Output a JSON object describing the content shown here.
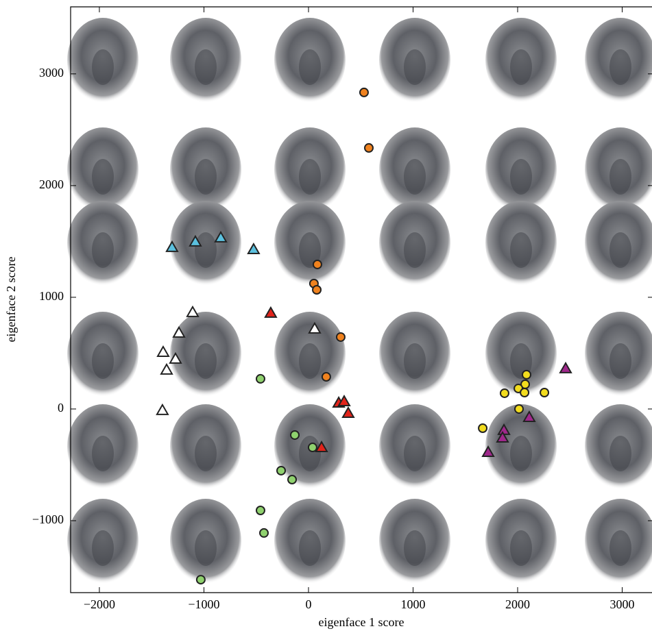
{
  "chart_data": {
    "type": "scatter",
    "x_label": "eigenface 1 score",
    "y_label": "eigenface 2 score",
    "xlim": [
      -2275,
      3285
    ],
    "ylim": [
      -1644,
      3600
    ],
    "xticks": [
      {
        "value": -2000,
        "label": "−2000"
      },
      {
        "value": -1000,
        "label": "−1000"
      },
      0,
      1000,
      2000,
      3000
    ],
    "yticks": [
      {
        "value": -1000,
        "label": "−1000"
      },
      0,
      1000,
      2000,
      3000
    ],
    "series": [
      {
        "marker": "circle",
        "color": "#f0821e",
        "x": [
          531,
          577,
          85,
          52,
          79,
          308,
          170
        ],
        "values": [
          2834,
          2337,
          1294,
          1123,
          1067,
          644,
          288
        ]
      },
      {
        "marker": "triangle",
        "color": "#5bc0de",
        "x": [
          -1305,
          -1082,
          -839,
          -525
        ],
        "values": [
          1448,
          1497,
          1534,
          1429
        ]
      },
      {
        "marker": "triangle",
        "color": "#ffffff",
        "x": [
          -1108,
          -1239,
          -1390,
          -1272,
          -1357,
          -1397,
          59
        ],
        "values": [
          865,
          681,
          509,
          448,
          350,
          -12,
          718
        ]
      },
      {
        "marker": "triangle",
        "color": "#e2231a",
        "x": [
          -361,
          289,
          341,
          380,
          125
        ],
        "values": [
          859,
          55,
          67,
          -37,
          -344
        ]
      },
      {
        "marker": "triangle",
        "color": "#a0288c",
        "x": [
          2459,
          2111,
          1869,
          1856,
          1718
        ],
        "values": [
          362,
          -74,
          -190,
          -258,
          -387
        ]
      },
      {
        "marker": "circle",
        "color": "#f2dc1e",
        "x": [
          2085,
          2072,
          2007,
          2066,
          1875,
          2256,
          2013,
          1666
        ],
        "values": [
          307,
          221,
          184,
          147,
          141,
          147,
          0,
          -172
        ]
      },
      {
        "marker": "circle",
        "color": "#8fd16e",
        "x": [
          -459,
          -131,
          39,
          -262,
          -157,
          -459,
          -426,
          -1030
        ],
        "values": [
          270,
          -233,
          -344,
          -552,
          -632,
          -908,
          -1110,
          -1528
        ]
      }
    ]
  }
}
